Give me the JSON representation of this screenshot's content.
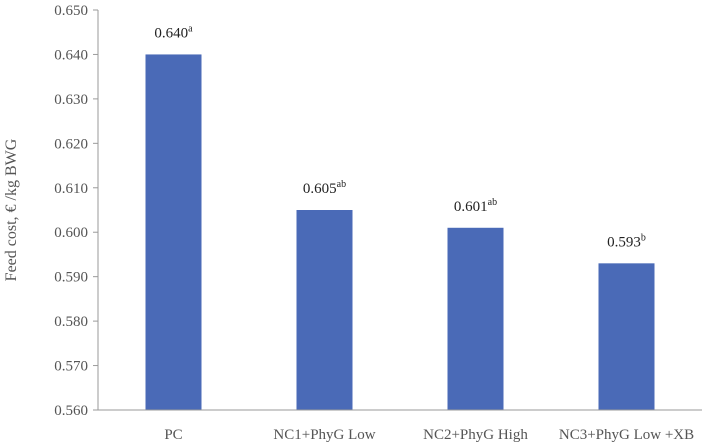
{
  "colors": {
    "bar": "#4a6ab7",
    "axis": "#9a9a9a"
  },
  "chart_data": {
    "type": "bar",
    "ylabel": "Feed cost,  € /kg BWG",
    "xlabel": "",
    "title": "",
    "ylim": [
      0.56,
      0.65
    ],
    "yticks": [
      "0.560",
      "0.570",
      "0.580",
      "0.590",
      "0.600",
      "0.610",
      "0.620",
      "0.630",
      "0.640",
      "0.650"
    ],
    "grid": false,
    "categories": [
      "PC",
      "NC1+PhyG Low",
      "NC2+PhyG High",
      "NC3+PhyG Low +XB"
    ],
    "values": [
      0.64,
      0.605,
      0.601,
      0.593
    ],
    "data_labels": [
      "0.640",
      "0.605",
      "0.601",
      "0.593"
    ],
    "data_label_superscripts": [
      "a",
      "ab",
      "ab",
      "b"
    ]
  }
}
